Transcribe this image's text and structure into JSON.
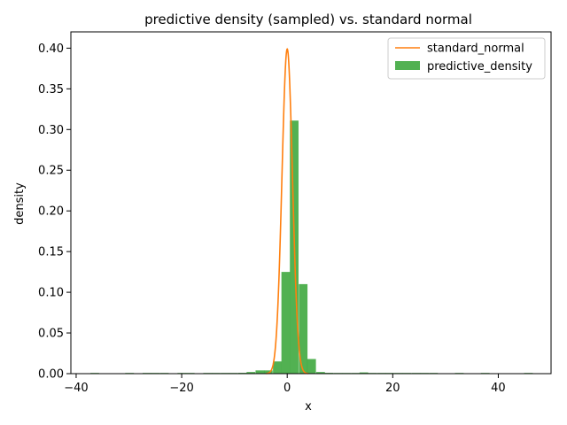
{
  "chart_data": {
    "type": "bar",
    "title": "predictive density (sampled) vs. standard normal",
    "xlabel": "x",
    "ylabel": "density",
    "xlim": [
      -41,
      50
    ],
    "ylim": [
      0,
      0.42
    ],
    "xticks": [
      -40,
      -20,
      0,
      20,
      40
    ],
    "yticks": [
      0.0,
      0.05,
      0.1,
      0.15,
      0.2,
      0.25,
      0.3,
      0.35,
      0.4
    ],
    "xtick_labels": [
      "−40",
      "−20",
      "0",
      "20",
      "40"
    ],
    "ytick_labels": [
      "0.00",
      "0.05",
      "0.10",
      "0.15",
      "0.20",
      "0.25",
      "0.30",
      "0.35",
      "0.40"
    ],
    "grid": false,
    "legend_position": "top-right",
    "series": [
      {
        "name": "standard_normal",
        "type": "line",
        "color": "#ff7f0e",
        "x_range": [
          -4,
          4
        ],
        "description_function": "standard normal pdf"
      },
      {
        "name": "predictive_density",
        "type": "histogram",
        "color": "#2ca02c",
        "bin_width": 1.64,
        "bins": [
          {
            "x0": -37.3,
            "value": 0.0005
          },
          {
            "x0": -30.7,
            "value": 0.0005
          },
          {
            "x0": -27.4,
            "value": 0.0005
          },
          {
            "x0": -25.8,
            "value": 0.0005
          },
          {
            "x0": -24.1,
            "value": 0.0005
          },
          {
            "x0": -20.8,
            "value": 0.0005
          },
          {
            "x0": -19.2,
            "value": 0.0005
          },
          {
            "x0": -15.9,
            "value": 0.0005
          },
          {
            "x0": -14.3,
            "value": 0.0005
          },
          {
            "x0": -12.6,
            "value": 0.0005
          },
          {
            "x0": -11.0,
            "value": 0.0005
          },
          {
            "x0": -9.3,
            "value": 0.001
          },
          {
            "x0": -7.7,
            "value": 0.002
          },
          {
            "x0": -6.0,
            "value": 0.004
          },
          {
            "x0": -4.4,
            "value": 0.004
          },
          {
            "x0": -2.7,
            "value": 0.015
          },
          {
            "x0": -1.1,
            "value": 0.125
          },
          {
            "x0": 0.5,
            "value": 0.311
          },
          {
            "x0": 2.2,
            "value": 0.11
          },
          {
            "x0": 3.8,
            "value": 0.018
          },
          {
            "x0": 5.5,
            "value": 0.002
          },
          {
            "x0": 7.1,
            "value": 0.001
          },
          {
            "x0": 8.8,
            "value": 0.0005
          },
          {
            "x0": 10.4,
            "value": 0.0005
          },
          {
            "x0": 12.1,
            "value": 0.0005
          },
          {
            "x0": 13.7,
            "value": 0.0015
          },
          {
            "x0": 15.3,
            "value": 0.0008
          },
          {
            "x0": 17.0,
            "value": 0.0008
          },
          {
            "x0": 18.6,
            "value": 0.0008
          },
          {
            "x0": 20.3,
            "value": 0.0008
          },
          {
            "x0": 21.9,
            "value": 0.0005
          },
          {
            "x0": 23.6,
            "value": 0.0005
          },
          {
            "x0": 25.2,
            "value": 0.0005
          },
          {
            "x0": 26.9,
            "value": 0.0005
          },
          {
            "x0": 31.8,
            "value": 0.0005
          },
          {
            "x0": 36.7,
            "value": 0.0005
          },
          {
            "x0": 44.9,
            "value": 0.0005
          }
        ]
      }
    ]
  }
}
